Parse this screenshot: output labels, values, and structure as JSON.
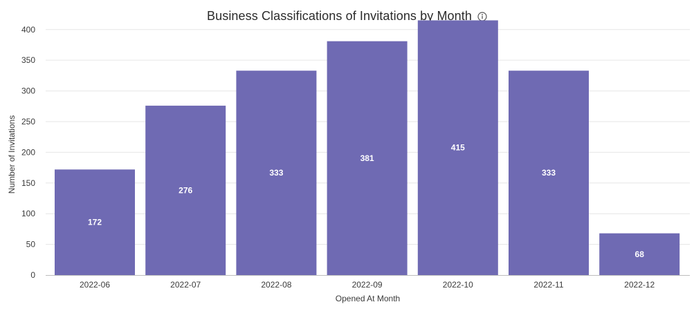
{
  "chart_data": {
    "type": "bar",
    "title": "Business Classifications of Invitations by Month",
    "categories": [
      "2022-06",
      "2022-07",
      "2022-08",
      "2022-09",
      "2022-10",
      "2022-11",
      "2022-12"
    ],
    "values": [
      172,
      276,
      333,
      381,
      415,
      333,
      68
    ],
    "xlabel": "Opened At Month",
    "ylabel": "Number of Invitations",
    "ylim": [
      0,
      420
    ],
    "yticks": [
      0,
      50,
      100,
      150,
      200,
      250,
      300,
      350,
      400
    ],
    "grid": true,
    "legend": "none",
    "data_labels": true
  },
  "colors": {
    "bar": "#6f6ab3",
    "grid": "#e6e6e6",
    "axis": "#bdbdbd"
  },
  "icons": {
    "title_info": "info-icon"
  }
}
